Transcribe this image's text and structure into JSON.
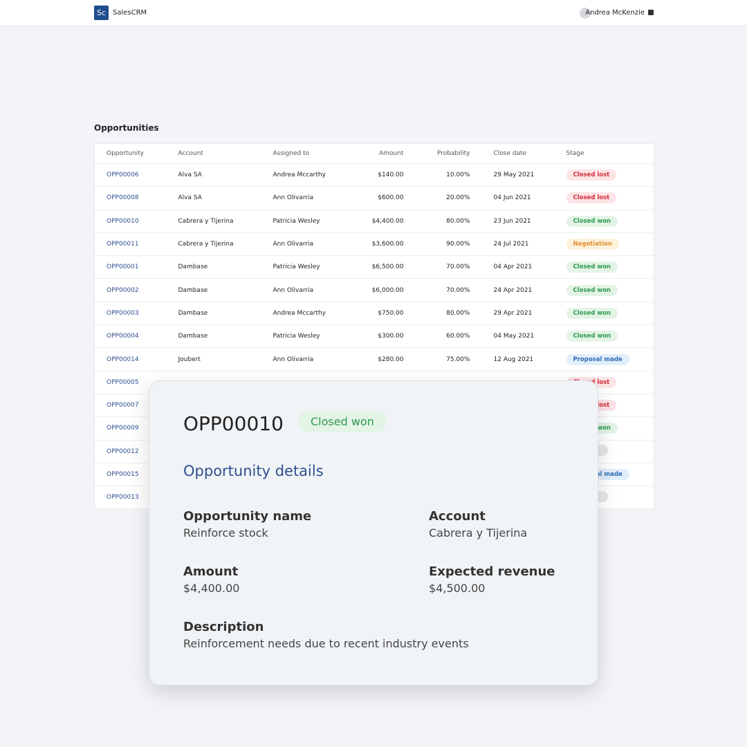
{
  "nav": {
    "logo": "Sc",
    "brand": "SalesCRM",
    "user": "Andrea McKenzie"
  },
  "table": {
    "title": "Opportunities",
    "headers": [
      "Opportunity",
      "Account",
      "Assigned to",
      "Amount",
      "Probability",
      "Close date",
      "Stage"
    ],
    "rows": [
      [
        "OPP00006",
        "Alva SA",
        "Andrea Mccarthy",
        "$140.00",
        "10.00%",
        "29 May 2021",
        "Closed lost"
      ],
      [
        "OPP00008",
        "Alva SA",
        "Ann Olivarria",
        "$600.00",
        "20.00%",
        "04 Jun 2021",
        "Closed lost"
      ],
      [
        "OPP00010",
        "Cabrera y Tijerina",
        "Patricia Wesley",
        "$4,400.00",
        "80.00%",
        "23 Jun 2021",
        "Closed won"
      ],
      [
        "OPP00011",
        "Cabrera y Tijerina",
        "Ann Olivarria",
        "$3,600.00",
        "90.00%",
        "24 Jul 2021",
        "Negotiation"
      ],
      [
        "OPP00001",
        "Dambase",
        "Patricia Wesley",
        "$6,500.00",
        "70.00%",
        "04 Apr 2021",
        "Closed won"
      ],
      [
        "OPP00002",
        "Dambase",
        "Ann Olivarria",
        "$6,000.00",
        "70.00%",
        "24 Apr 2021",
        "Closed won"
      ],
      [
        "OPP00003",
        "Dambase",
        "Andrea Mccarthy",
        "$750.00",
        "80.00%",
        "29 Apr 2021",
        "Closed won"
      ],
      [
        "OPP00004",
        "Dambase",
        "Patricia Wesley",
        "$300.00",
        "60.00%",
        "04 May 2021",
        "Closed won"
      ],
      [
        "OPP00014",
        "Joubert",
        "Ann Olivarria",
        "$280.00",
        "75.00%",
        "12 Aug 2021",
        "Proposal made"
      ],
      [
        "OPP00005",
        null,
        null,
        null,
        null,
        null,
        "Closed lost"
      ],
      [
        "OPP00007",
        null,
        null,
        null,
        null,
        null,
        "Closed lost"
      ],
      [
        "OPP00009",
        null,
        null,
        null,
        null,
        null,
        "Closed won"
      ],
      [
        "OPP00012",
        null,
        null,
        null,
        null,
        null,
        null
      ],
      [
        "OPP00015",
        null,
        null,
        null,
        null,
        null,
        "Proposal made"
      ],
      [
        "OPP00013",
        null,
        null,
        null,
        null,
        null,
        null
      ]
    ]
  },
  "card": {
    "id": "OPP00010",
    "status": "Closed won",
    "section": "Opportunity details",
    "fields": [
      {
        "label": "Opportunity name",
        "value": "Reinforce stock"
      },
      {
        "label": "Account",
        "value": "Cabrera y Tijerina"
      },
      {
        "label": "Amount",
        "value": "$4,400.00"
      },
      {
        "label": "Expected revenue",
        "value": "$4,500.00"
      },
      {
        "label": "Description",
        "value": "Reinforcement needs due to recent industry events"
      }
    ]
  }
}
